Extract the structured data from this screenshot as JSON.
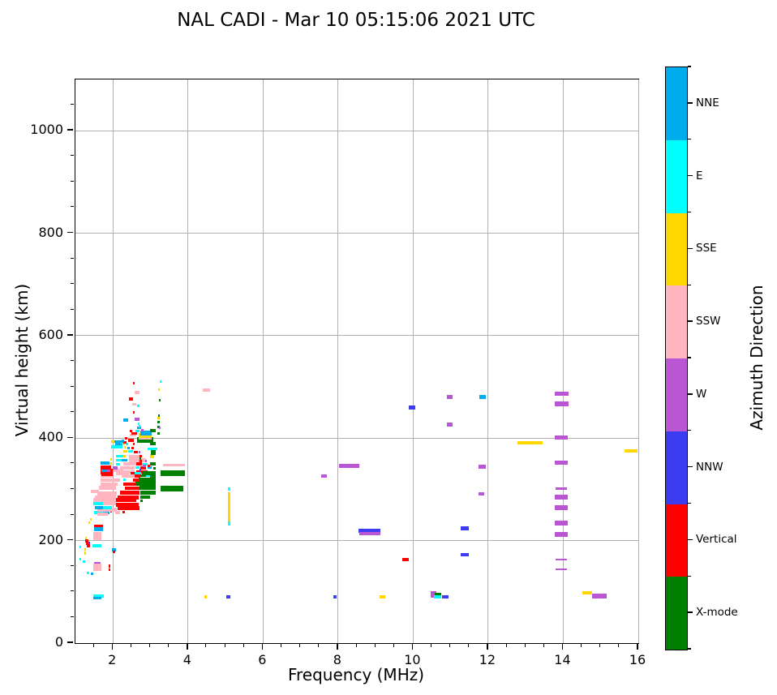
{
  "title": "NAL CADI - Mar 10 05:15:06 2021 UTC",
  "axes": {
    "xlabel": "Frequency (MHz)",
    "ylabel": "Virtual height (km)",
    "xlim": [
      1,
      16
    ],
    "ylim": [
      0,
      1100
    ],
    "xticks": [
      2,
      4,
      6,
      8,
      10,
      12,
      14,
      16
    ],
    "yticks": [
      0,
      200,
      400,
      600,
      800,
      1000
    ],
    "x_minor_step": 0.5,
    "y_minor_step": 50,
    "grid": true,
    "grid_color": "#b0b0b0"
  },
  "colorbar": {
    "label": "Azimuth Direction",
    "segments_top_to_bottom": [
      {
        "label": "NNE",
        "color": "#00ACEC"
      },
      {
        "label": "E",
        "color": "#00FFFF"
      },
      {
        "label": "SSE",
        "color": "#FFD700"
      },
      {
        "label": "SSW",
        "color": "#FFB6C1"
      },
      {
        "label": "W",
        "color": "#BA55D3"
      },
      {
        "label": "NNW",
        "color": "#3C3CF0"
      },
      {
        "label": "Vertical",
        "color": "#FF0000"
      },
      {
        "label": "X-mode",
        "color": "#008000"
      }
    ]
  },
  "chart_data": {
    "type": "scatter",
    "title": "NAL CADI - Mar 10 05:15:06 2021 UTC",
    "xlabel": "Frequency (MHz)",
    "ylabel": "Virtual height (km)",
    "xlim": [
      1,
      16
    ],
    "ylim": [
      0,
      1100
    ],
    "legend_position": "right-colorbar",
    "direction_colors": {
      "NNE": "#00ACEC",
      "E": "#00FFFF",
      "SSE": "#FFD700",
      "SSW": "#FFB6C1",
      "W": "#BA55D3",
      "NNW": "#3C3CF0",
      "V": "#FF0000",
      "X": "#008000"
    },
    "mark_format": [
      "freq_start_MHz",
      "freq_end_MHz",
      "virtual_height_km",
      "direction",
      "thickness_px"
    ],
    "marks": [
      [
        1.5,
        1.78,
        90,
        "E",
        4
      ],
      [
        1.5,
        1.72,
        86,
        "NNE",
        3
      ],
      [
        4.46,
        4.53,
        88,
        "SSE",
        4
      ],
      [
        5.05,
        5.15,
        88,
        "NNW",
        4
      ],
      [
        7.9,
        7.98,
        88,
        "NNW",
        4
      ],
      [
        9.12,
        9.28,
        88,
        "SSE",
        4
      ],
      [
        10.48,
        10.63,
        93,
        "W",
        8
      ],
      [
        10.6,
        10.76,
        93,
        "X",
        4
      ],
      [
        10.58,
        10.76,
        89,
        "E",
        4
      ],
      [
        10.8,
        10.96,
        88,
        "NNW",
        4
      ],
      [
        14.52,
        14.8,
        97,
        "SSE",
        4
      ],
      [
        14.8,
        15.17,
        91,
        "W",
        6
      ],
      [
        1.13,
        1.18,
        163,
        "E",
        3
      ],
      [
        1.25,
        1.29,
        174,
        "SSE",
        4
      ],
      [
        1.25,
        1.29,
        181,
        "SSE",
        3
      ],
      [
        1.22,
        1.28,
        157,
        "E",
        3
      ],
      [
        1.28,
        1.33,
        203,
        "SSE",
        3
      ],
      [
        1.28,
        1.36,
        198,
        "V",
        4
      ],
      [
        1.3,
        1.41,
        193,
        "V",
        4
      ],
      [
        1.33,
        1.4,
        188,
        "V",
        4
      ],
      [
        1.36,
        1.41,
        194,
        "NNW",
        3
      ],
      [
        1.47,
        1.72,
        188,
        "E",
        4
      ],
      [
        1.32,
        1.38,
        136,
        "E",
        3
      ],
      [
        1.43,
        1.5,
        134,
        "NNE",
        3
      ],
      [
        1.52,
        1.7,
        154,
        "W",
        4
      ],
      [
        1.5,
        1.72,
        146,
        "SSW",
        9
      ],
      [
        1.9,
        1.95,
        148,
        "V",
        4
      ],
      [
        1.9,
        1.95,
        142,
        "V",
        3
      ],
      [
        2.0,
        2.1,
        181,
        "NNE",
        4
      ],
      [
        2.02,
        2.08,
        176,
        "V",
        3
      ],
      [
        1.36,
        1.41,
        233,
        "SSE",
        3
      ],
      [
        1.4,
        1.45,
        239,
        "SSE",
        3
      ],
      [
        1.13,
        1.17,
        186,
        "E",
        3
      ],
      [
        1.52,
        1.76,
        254,
        "E",
        4
      ],
      [
        1.76,
        1.94,
        254,
        "NNE",
        4
      ],
      [
        1.95,
        2.0,
        255,
        "V",
        3
      ],
      [
        2.08,
        2.2,
        254,
        "SSW",
        4
      ],
      [
        2.28,
        2.33,
        254,
        "V",
        3
      ],
      [
        1.6,
        1.88,
        250,
        "SSW",
        4
      ],
      [
        1.52,
        1.76,
        226,
        "V",
        5
      ],
      [
        1.52,
        1.76,
        221,
        "NNE",
        5
      ],
      [
        1.5,
        1.72,
        208,
        "SSW",
        10
      ],
      [
        1.78,
        1.86,
        259,
        "V",
        3
      ],
      [
        1.6,
        2.12,
        259,
        "SSW",
        5
      ],
      [
        1.54,
        1.76,
        262,
        "NNE",
        4
      ],
      [
        1.76,
        2.0,
        262,
        "E",
        4
      ],
      [
        2.15,
        2.73,
        262,
        "V",
        5
      ],
      [
        1.5,
        1.76,
        270,
        "E",
        4
      ],
      [
        1.76,
        2.1,
        270,
        "SSW",
        4
      ],
      [
        2.1,
        2.7,
        269,
        "V",
        5
      ],
      [
        1.5,
        2.1,
        277,
        "SSW",
        5
      ],
      [
        2.1,
        2.65,
        277,
        "V",
        5
      ],
      [
        2.76,
        2.81,
        276,
        "X",
        3
      ],
      [
        1.55,
        2.1,
        284,
        "SSW",
        4
      ],
      [
        2.15,
        2.7,
        283,
        "V",
        5
      ],
      [
        2.75,
        3.0,
        284,
        "X",
        4
      ],
      [
        1.43,
        1.65,
        294,
        "SSW",
        4
      ],
      [
        1.6,
        2.12,
        291,
        "SSW",
        5
      ],
      [
        2.2,
        2.72,
        292,
        "V",
        5
      ],
      [
        2.75,
        3.17,
        292,
        "X",
        5
      ],
      [
        1.65,
        2.1,
        301,
        "SSW",
        5
      ],
      [
        2.33,
        2.5,
        301,
        "V",
        4
      ],
      [
        2.5,
        2.72,
        300,
        "V",
        4
      ],
      [
        2.72,
        3.17,
        301,
        "X",
        5
      ],
      [
        3.3,
        3.9,
        300,
        "X",
        7
      ],
      [
        1.7,
        2.15,
        309,
        "SSW",
        4
      ],
      [
        2.3,
        2.62,
        308,
        "V",
        4
      ],
      [
        2.62,
        3.17,
        309,
        "X",
        5
      ],
      [
        1.7,
        2.2,
        317,
        "SSW",
        4
      ],
      [
        2.3,
        2.36,
        317,
        "E",
        3
      ],
      [
        2.55,
        2.75,
        316,
        "V",
        4
      ],
      [
        2.7,
        3.17,
        317,
        "X",
        6
      ],
      [
        1.7,
        2.02,
        325,
        "SSW",
        5
      ],
      [
        2.25,
        2.6,
        325,
        "SSW",
        4
      ],
      [
        2.6,
        2.75,
        324,
        "V",
        4
      ],
      [
        2.75,
        2.9,
        326,
        "X",
        3
      ],
      [
        2.9,
        3.0,
        325,
        "E",
        3
      ],
      [
        3.0,
        3.17,
        325,
        "X",
        4
      ],
      [
        1.7,
        2.02,
        333,
        "V",
        6
      ],
      [
        2.3,
        2.6,
        332,
        "SSW",
        4
      ],
      [
        2.65,
        2.95,
        332,
        "V",
        4
      ],
      [
        2.95,
        3.1,
        331,
        "E",
        3
      ],
      [
        3.1,
        3.17,
        332,
        "X",
        3
      ],
      [
        1.71,
        1.86,
        336,
        "NNE",
        4
      ],
      [
        1.86,
        1.95,
        336,
        "W",
        4
      ],
      [
        1.95,
        2.02,
        336,
        "V",
        4
      ],
      [
        2.04,
        2.3,
        336,
        "SSW",
        4
      ],
      [
        1.71,
        2.02,
        329,
        "V",
        5
      ],
      [
        2.1,
        2.45,
        330,
        "SSW",
        4
      ],
      [
        2.5,
        2.6,
        330,
        "V",
        3
      ],
      [
        2.6,
        2.78,
        330,
        "E",
        3
      ],
      [
        2.8,
        3.17,
        330,
        "X",
        5
      ],
      [
        3.3,
        3.95,
        330,
        "X",
        7
      ],
      [
        3.36,
        3.95,
        346,
        "SSW",
        3
      ],
      [
        1.69,
        1.98,
        341,
        "V",
        5
      ],
      [
        2.02,
        2.15,
        341,
        "W",
        4
      ],
      [
        2.2,
        2.6,
        341,
        "SSW",
        4
      ],
      [
        2.62,
        2.72,
        341,
        "E",
        3
      ],
      [
        2.75,
        2.9,
        340,
        "V",
        4
      ],
      [
        2.73,
        2.78,
        337,
        "NNW",
        3
      ],
      [
        2.95,
        3.05,
        341,
        "NNE",
        3
      ],
      [
        3.1,
        3.17,
        340,
        "X",
        3
      ],
      [
        1.69,
        1.94,
        349,
        "NNE",
        4
      ],
      [
        1.94,
        1.99,
        349,
        "SSE",
        3
      ],
      [
        2.1,
        2.2,
        348,
        "E",
        3
      ],
      [
        2.3,
        2.65,
        348,
        "SSW",
        4
      ],
      [
        2.65,
        2.8,
        348,
        "V",
        4
      ],
      [
        2.8,
        2.95,
        348,
        "E",
        3
      ],
      [
        2.82,
        2.9,
        345,
        "W",
        3
      ],
      [
        3.0,
        3.17,
        348,
        "X",
        4
      ],
      [
        2.95,
        3.0,
        345,
        "V",
        3
      ],
      [
        1.95,
        2.0,
        357,
        "SSE",
        3
      ],
      [
        2.1,
        2.25,
        356,
        "E",
        3
      ],
      [
        2.25,
        2.4,
        356,
        "NNE",
        3
      ],
      [
        2.45,
        2.9,
        356,
        "SSW",
        5
      ],
      [
        2.72,
        2.8,
        353,
        "V",
        3
      ],
      [
        2.87,
        2.92,
        353,
        "W",
        3
      ],
      [
        2.72,
        2.77,
        358,
        "X",
        3
      ],
      [
        2.1,
        2.3,
        364,
        "E",
        3
      ],
      [
        2.3,
        2.37,
        363,
        "SSE",
        3
      ],
      [
        2.45,
        2.73,
        363,
        "SSW",
        4
      ],
      [
        2.73,
        2.79,
        363,
        "V",
        3
      ],
      [
        3.0,
        3.12,
        364,
        "SSE",
        5
      ],
      [
        3.03,
        3.17,
        369,
        "X",
        4
      ],
      [
        2.3,
        2.4,
        372,
        "SSE",
        3
      ],
      [
        2.42,
        2.55,
        372,
        "E",
        3
      ],
      [
        2.58,
        2.68,
        371,
        "V",
        3
      ],
      [
        2.7,
        2.75,
        371,
        "W",
        3
      ],
      [
        3.03,
        3.17,
        373,
        "X",
        3
      ],
      [
        1.98,
        2.28,
        381,
        "E",
        4
      ],
      [
        2.32,
        2.37,
        380,
        "SSE",
        3
      ],
      [
        2.4,
        2.46,
        379,
        "NNE",
        3
      ],
      [
        2.52,
        2.58,
        379,
        "V",
        3
      ],
      [
        2.95,
        3.2,
        378,
        "E",
        3
      ],
      [
        2.09,
        2.28,
        388,
        "NNE",
        4
      ],
      [
        2.3,
        2.35,
        387,
        "SSE",
        3
      ],
      [
        2.36,
        2.42,
        387,
        "E",
        3
      ],
      [
        2.55,
        2.6,
        387,
        "V",
        3
      ],
      [
        3.0,
        3.17,
        388,
        "X",
        4
      ],
      [
        2.2,
        2.29,
        390,
        "E",
        3
      ],
      [
        2.04,
        2.3,
        392,
        "NNE",
        3
      ],
      [
        2.3,
        2.38,
        390,
        "V",
        3
      ],
      [
        1.98,
        2.05,
        391,
        "SSE",
        3
      ],
      [
        2.42,
        2.58,
        394,
        "V",
        4
      ],
      [
        2.26,
        2.31,
        394,
        "NNE",
        3
      ],
      [
        2.66,
        3.1,
        395,
        "X",
        7
      ],
      [
        2.35,
        2.4,
        398,
        "V",
        3
      ],
      [
        2.7,
        3.05,
        399,
        "SSW",
        5
      ],
      [
        2.7,
        3.05,
        403,
        "SSE",
        6
      ],
      [
        2.47,
        2.65,
        405,
        "SSW",
        3
      ],
      [
        2.75,
        3.05,
        409,
        "NNE",
        6
      ],
      [
        3.0,
        3.17,
        413,
        "X",
        4
      ],
      [
        2.48,
        2.53,
        412,
        "V",
        3
      ],
      [
        2.63,
        2.73,
        412,
        "E",
        3
      ],
      [
        2.52,
        2.67,
        408,
        "V",
        3
      ],
      [
        2.78,
        2.83,
        414,
        "W",
        3
      ],
      [
        2.66,
        2.78,
        419,
        "NNE",
        3
      ],
      [
        3.2,
        3.26,
        420,
        "X",
        3
      ],
      [
        3.2,
        3.26,
        408,
        "X",
        3
      ],
      [
        3.21,
        3.26,
        430,
        "X",
        3
      ],
      [
        3.22,
        3.28,
        443,
        "X",
        3
      ],
      [
        3.2,
        3.28,
        438,
        "SSE",
        3
      ],
      [
        3.25,
        3.3,
        418,
        "W",
        3
      ],
      [
        2.6,
        2.72,
        435,
        "W",
        4
      ],
      [
        2.3,
        2.43,
        433,
        "NNE",
        4
      ],
      [
        2.68,
        2.73,
        427,
        "E",
        3
      ],
      [
        2.7,
        2.76,
        422,
        "E",
        3
      ],
      [
        2.56,
        2.61,
        449,
        "V",
        3
      ],
      [
        2.67,
        2.72,
        462,
        "E",
        3
      ],
      [
        2.54,
        2.65,
        465,
        "SSW",
        3
      ],
      [
        2.45,
        2.55,
        475,
        "V",
        4
      ],
      [
        3.24,
        3.29,
        472,
        "X",
        3
      ],
      [
        2.6,
        2.73,
        488,
        "SSW",
        4
      ],
      [
        3.23,
        3.28,
        493,
        "SSE",
        3
      ],
      [
        2.56,
        2.61,
        506,
        "V",
        3
      ],
      [
        3.26,
        3.31,
        509,
        "E",
        3
      ],
      [
        4.42,
        4.62,
        493,
        "SSW",
        4
      ],
      [
        5.08,
        5.14,
        264,
        "SSE",
        36
      ],
      [
        5.08,
        5.14,
        299,
        "E",
        4
      ],
      [
        5.08,
        5.14,
        232,
        "E",
        5
      ],
      [
        7.58,
        7.72,
        325,
        "W",
        4
      ],
      [
        8.05,
        8.58,
        345,
        "W",
        5
      ],
      [
        8.56,
        9.15,
        217,
        "NNW",
        5
      ],
      [
        8.58,
        9.15,
        212,
        "W",
        4
      ],
      [
        9.9,
        10.07,
        458,
        "NNW",
        5
      ],
      [
        10.93,
        11.08,
        478,
        "W",
        5
      ],
      [
        11.79,
        11.95,
        478,
        "NNE",
        5
      ],
      [
        10.93,
        11.08,
        425,
        "W",
        5
      ],
      [
        11.76,
        11.95,
        343,
        "W",
        5
      ],
      [
        11.76,
        11.92,
        289,
        "W",
        4
      ],
      [
        11.28,
        11.5,
        222,
        "NNW",
        5
      ],
      [
        11.29,
        11.5,
        171,
        "NNW",
        4
      ],
      [
        9.73,
        9.9,
        162,
        "V",
        4
      ],
      [
        12.8,
        13.48,
        390,
        "SSE",
        4
      ],
      [
        15.65,
        16.0,
        373,
        "SSE",
        4
      ],
      [
        13.8,
        14.17,
        485,
        "W",
        5
      ],
      [
        13.8,
        14.17,
        466,
        "W",
        6
      ],
      [
        13.8,
        14.15,
        399,
        "W",
        5
      ],
      [
        13.8,
        14.15,
        350,
        "W",
        5
      ],
      [
        13.82,
        14.12,
        300,
        "W",
        3
      ],
      [
        13.8,
        14.15,
        283,
        "W",
        6
      ],
      [
        13.8,
        14.15,
        262,
        "W",
        6
      ],
      [
        13.8,
        14.15,
        232,
        "W",
        6
      ],
      [
        13.8,
        14.15,
        211,
        "W",
        6
      ],
      [
        13.82,
        14.12,
        161,
        "W",
        2
      ],
      [
        13.82,
        14.12,
        142,
        "W",
        2
      ]
    ]
  }
}
